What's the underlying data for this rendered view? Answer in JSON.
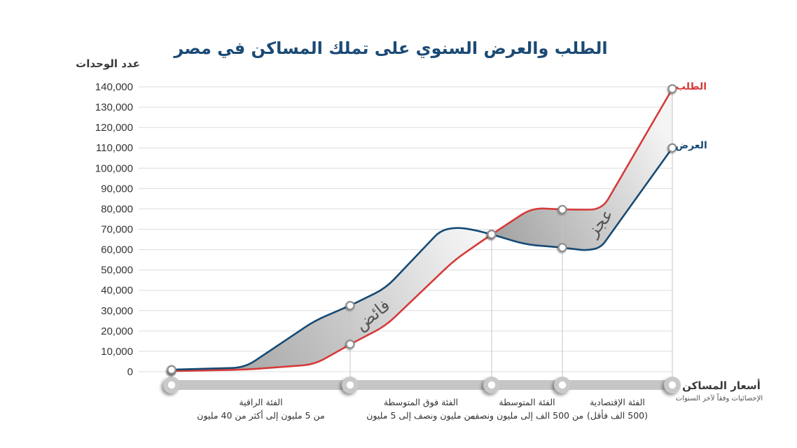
{
  "chart_data": {
    "type": "line",
    "title": "الطلب والعرض السنوي على تملك المساكن في مصر",
    "ylabel": "عدد الوحدات",
    "xlabel": "أسعار المساكن",
    "xlabel_note": "الإحصائيات وفقاً لآخر السنوات",
    "ylim": [
      0,
      140000
    ],
    "yticks": [
      0,
      10000,
      20000,
      30000,
      40000,
      50000,
      60000,
      70000,
      80000,
      90000,
      100000,
      110000,
      120000,
      130000,
      140000
    ],
    "ytick_labels": [
      "0",
      "10,000",
      "20,000",
      "30,000",
      "40,000",
      "50,000",
      "60,000",
      "70,000",
      "80,000",
      "90,000",
      "100,000",
      "110,000",
      "120,000",
      "130,000",
      "140,000"
    ],
    "grid": true,
    "legend_position": "right",
    "x_boundaries": [
      0,
      1,
      2,
      3,
      4
    ],
    "categories": [
      {
        "name": "الفئة الراقية",
        "range": "من 5 مليون إلى أكثر من 40 مليون",
        "x_from": 0,
        "x_to": 1
      },
      {
        "name": "الفئة فوق المتوسطة",
        "range": "من مليون ونصف إلى 5 مليون",
        "x_from": 1,
        "x_to": 2
      },
      {
        "name": "الفئة المتوسطة",
        "range": "من 500 الف إلى مليون ونصف",
        "x_from": 2,
        "x_to": 3
      },
      {
        "name": "الفئة الإقتصادية",
        "range": "(500 الف فأقل)",
        "x_from": 3,
        "x_to": 4
      }
    ],
    "series": [
      {
        "name": "الطلب",
        "color": "#d63a3a",
        "points": [
          [
            0,
            300
          ],
          [
            0.41,
            1000
          ],
          [
            0.8,
            3500
          ],
          [
            1,
            13500
          ],
          [
            1.25,
            22500
          ],
          [
            1.74,
            55000
          ],
          [
            2,
            67500
          ],
          [
            2.57,
            80500
          ],
          [
            3,
            79700
          ],
          [
            3.36,
            79600
          ],
          [
            4,
            139000
          ]
        ]
      },
      {
        "name": "العرض",
        "color": "#164a74",
        "points": [
          [
            0,
            1000
          ],
          [
            0.41,
            2000
          ],
          [
            0.8,
            25000
          ],
          [
            1,
            32500
          ],
          [
            1.25,
            41000
          ],
          [
            1.64,
            69500
          ],
          [
            1.76,
            71000
          ],
          [
            1.9,
            69300
          ],
          [
            2,
            67500
          ],
          [
            2.48,
            62500
          ],
          [
            3,
            61000
          ],
          [
            3.22,
            59500
          ],
          [
            3.35,
            61000
          ],
          [
            4,
            110000
          ]
        ]
      }
    ],
    "regions": [
      {
        "label": "فائض",
        "x_from": 0,
        "x_to": 2,
        "upper_series": 1
      },
      {
        "label": "عجز",
        "x_from": 2,
        "x_to": 4,
        "upper_series": 0
      }
    ]
  }
}
